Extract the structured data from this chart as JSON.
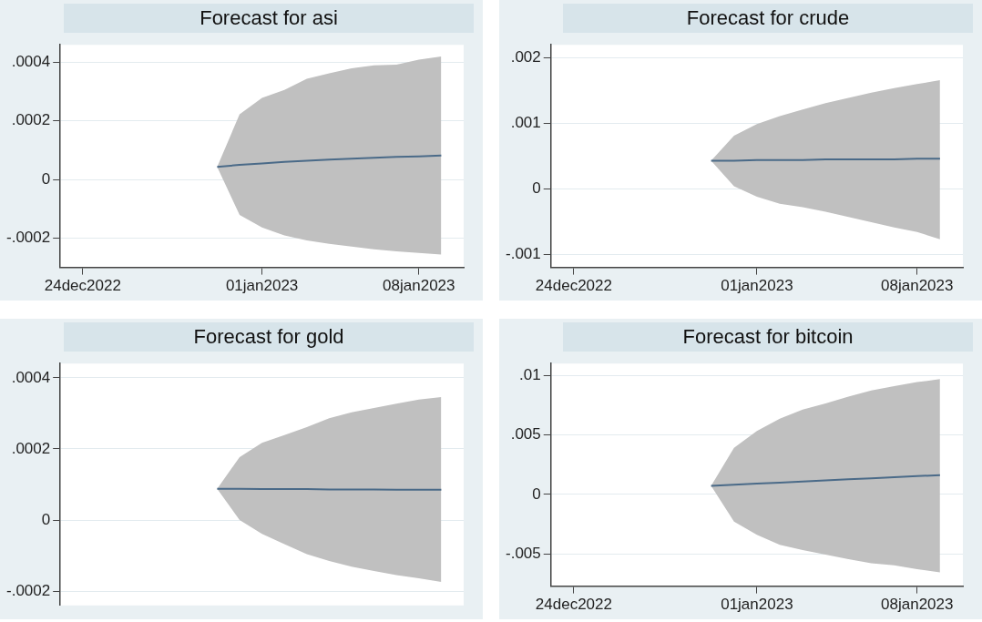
{
  "chart_data": [
    {
      "type": "line",
      "title": "Forecast for asi",
      "x": [
        "2022-12-30",
        "2022-12-31",
        "2023-01-01",
        "2023-01-02",
        "2023-01-03",
        "2023-01-04",
        "2023-01-05",
        "2023-01-06",
        "2023-01-07",
        "2023-01-08",
        "2023-01-09"
      ],
      "series": [
        {
          "color": "#4a6a88",
          "values": [
            4.3e-05,
            5e-05,
            5.5e-05,
            6e-05,
            6.4e-05,
            6.8e-05,
            7.1e-05,
            7.4e-05,
            7.7e-05,
            7.9e-05,
            8.2e-05
          ],
          "lower": [
            4.3e-05,
            -0.000121,
            -0.000164,
            -0.000191,
            -0.000208,
            -0.00022,
            -0.000229,
            -0.000238,
            -0.000245,
            -0.000251,
            -0.000256
          ],
          "upper": [
            4.3e-05,
            0.000223,
            0.000279,
            0.000306,
            0.000344,
            0.000363,
            0.00038,
            0.00039,
            0.000392,
            0.000409,
            0.00042
          ]
        }
      ],
      "xlim": [
        "2022-12-23",
        "2023-01-10"
      ],
      "ylim": [
        -0.0003,
        0.00046
      ],
      "xticks": [
        {
          "value": "2022-12-24",
          "label": "24dec2022"
        },
        {
          "value": "2023-01-01",
          "label": "01jan2023"
        },
        {
          "value": "2023-01-08",
          "label": "08jan2023"
        }
      ],
      "yticks": [
        {
          "value": -0.0002,
          "label": "-.0002"
        },
        {
          "value": 0,
          "label": "0"
        },
        {
          "value": 0.0002,
          "label": ".0002"
        },
        {
          "value": 0.0004,
          "label": ".0004"
        }
      ],
      "grid": "y",
      "marker": "none"
    },
    {
      "type": "line",
      "title": "Forecast for crude",
      "x": [
        "2022-12-30",
        "2022-12-31",
        "2023-01-01",
        "2023-01-02",
        "2023-01-03",
        "2023-01-04",
        "2023-01-05",
        "2023-01-06",
        "2023-01-07",
        "2023-01-08",
        "2023-01-09"
      ],
      "series": [
        {
          "color": "#4a6a88",
          "values": [
            0.00043,
            0.00043,
            0.00044,
            0.00044,
            0.00044,
            0.00045,
            0.00045,
            0.00045,
            0.00045,
            0.00046,
            0.00046
          ],
          "lower": [
            0.00043,
            4e-05,
            -0.00012,
            -0.00023,
            -0.00028,
            -0.00035,
            -0.00043,
            -0.00051,
            -0.00059,
            -0.00066,
            -0.00077
          ],
          "upper": [
            0.00043,
            0.00081,
            0.00099,
            0.00111,
            0.00121,
            0.00131,
            0.00139,
            0.00147,
            0.00154,
            0.0016,
            0.00166
          ]
        }
      ],
      "xlim": [
        "2022-12-23",
        "2023-01-10"
      ],
      "ylim": [
        -0.0012,
        0.0022
      ],
      "xticks": [
        {
          "value": "2022-12-24",
          "label": "24dec2022"
        },
        {
          "value": "2023-01-01",
          "label": "01jan2023"
        },
        {
          "value": "2023-01-08",
          "label": "08jan2023"
        }
      ],
      "yticks": [
        {
          "value": -0.001,
          "label": "-.001"
        },
        {
          "value": 0,
          "label": "0"
        },
        {
          "value": 0.001,
          "label": ".001"
        },
        {
          "value": 0.002,
          "label": ".002"
        }
      ],
      "grid": "y",
      "marker": "none"
    },
    {
      "type": "line",
      "title": "Forecast for gold",
      "x": [
        "2022-12-30",
        "2022-12-31",
        "2023-01-01",
        "2023-01-02",
        "2023-01-03",
        "2023-01-04",
        "2023-01-05",
        "2023-01-06",
        "2023-01-07",
        "2023-01-08",
        "2023-01-09"
      ],
      "series": [
        {
          "color": "#4a6a88",
          "values": [
            8.8e-05,
            8.8e-05,
            8.7e-05,
            8.7e-05,
            8.7e-05,
            8.6e-05,
            8.6e-05,
            8.6e-05,
            8.5e-05,
            8.5e-05,
            8.5e-05
          ],
          "lower": [
            8.8e-05,
            0,
            -3.9e-05,
            -6.8e-05,
            -9.6e-05,
            -0.000115,
            -0.000131,
            -0.000143,
            -0.000155,
            -0.000164,
            -0.000174
          ],
          "upper": [
            8.8e-05,
            0.000177,
            0.000217,
            0.000239,
            0.000261,
            0.000286,
            0.000303,
            0.000315,
            0.000327,
            0.000339,
            0.000346
          ]
        }
      ],
      "xlim": [
        "2022-12-23",
        "2023-01-10"
      ],
      "ylim": [
        -0.00024,
        0.00044
      ],
      "xticks": [
        {
          "value": "2022-12-24",
          "label": null
        },
        {
          "value": "2023-01-01",
          "label": null
        },
        {
          "value": "2023-01-08",
          "label": null
        }
      ],
      "yticks": [
        {
          "value": -0.0002,
          "label": "-.0002"
        },
        {
          "value": 0,
          "label": "0"
        },
        {
          "value": 0.0002,
          "label": ".0002"
        },
        {
          "value": 0.0004,
          "label": ".0004"
        }
      ],
      "grid": "y",
      "marker": "none",
      "tick_labels": "y"
    },
    {
      "type": "line",
      "title": "Forecast for bitcoin",
      "x": [
        "2022-12-30",
        "2022-12-31",
        "2023-01-01",
        "2023-01-02",
        "2023-01-03",
        "2023-01-04",
        "2023-01-05",
        "2023-01-06",
        "2023-01-07",
        "2023-01-08",
        "2023-01-09"
      ],
      "series": [
        {
          "color": "#4a6a88",
          "values": [
            0.00072,
            0.00082,
            0.00091,
            0.001,
            0.00109,
            0.00118,
            0.00127,
            0.00136,
            0.00145,
            0.00154,
            0.00162
          ],
          "lower": [
            0.00072,
            -0.00228,
            -0.00338,
            -0.00423,
            -0.00467,
            -0.00505,
            -0.00544,
            -0.00577,
            -0.00595,
            -0.00628,
            -0.00654
          ],
          "upper": [
            0.00072,
            0.00392,
            0.00533,
            0.00636,
            0.00713,
            0.00764,
            0.00823,
            0.00874,
            0.0091,
            0.00944,
            0.00969
          ]
        }
      ],
      "xlim": [
        "2022-12-23",
        "2023-01-10"
      ],
      "ylim": [
        -0.0077,
        0.011
      ],
      "xticks": [
        {
          "value": "2022-12-24",
          "label": "24dec2022"
        },
        {
          "value": "2023-01-01",
          "label": "01jan2023"
        },
        {
          "value": "2023-01-08",
          "label": "08jan2023"
        }
      ],
      "yticks": [
        {
          "value": -0.005,
          "label": "-.005"
        },
        {
          "value": 0,
          "label": "0"
        },
        {
          "value": 0.005,
          "label": ".005"
        },
        {
          "value": 0.01,
          "label": ".01"
        }
      ],
      "grid": "y",
      "marker": "none"
    }
  ]
}
